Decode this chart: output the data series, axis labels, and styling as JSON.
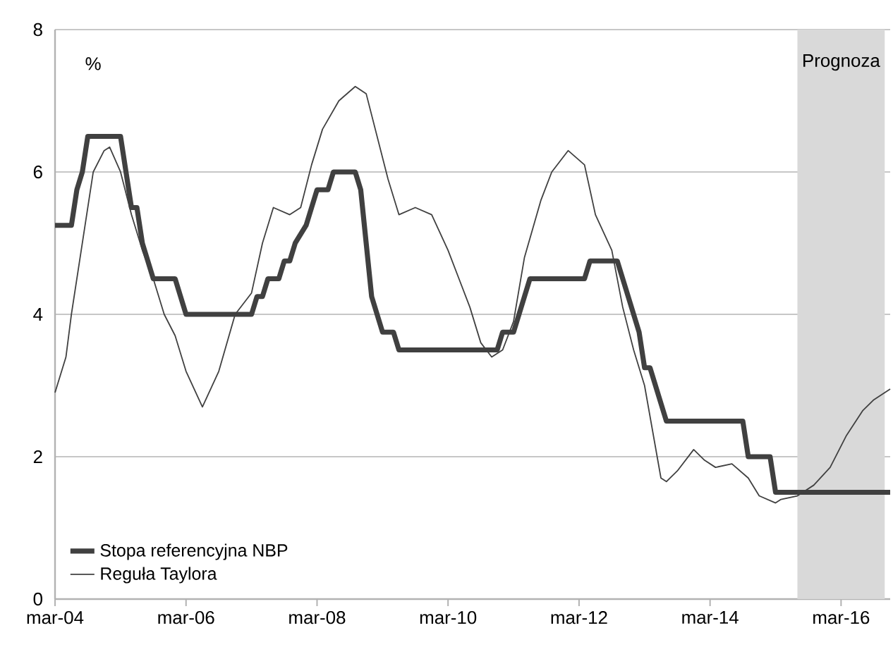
{
  "chart_data": {
    "type": "line",
    "annotations": [
      "%"
    ],
    "xlim": [
      "2004-03",
      "2016-12"
    ],
    "xticks": [
      {
        "value": "2004-03",
        "label": "mar-04"
      },
      {
        "value": "2006-03",
        "label": "mar-06"
      },
      {
        "value": "2008-03",
        "label": "mar-08"
      },
      {
        "value": "2010-03",
        "label": "mar-10"
      },
      {
        "value": "2012-03",
        "label": "mar-12"
      },
      {
        "value": "2014-03",
        "label": "mar-14"
      },
      {
        "value": "2016-03",
        "label": "mar-16"
      }
    ],
    "ylim": [
      0,
      8
    ],
    "yticks": [
      0,
      2,
      4,
      6,
      8
    ],
    "grid": "y",
    "legend": "bottom left",
    "bands": [
      {
        "axis": "x",
        "from": "2015-07",
        "to": "2016-11",
        "label": "Prognoza",
        "color": "#d9d9d9"
      }
    ],
    "series": [
      {
        "name": "Stopa referencyjna NBP",
        "color": "#404040",
        "x": [
          "2004-03",
          "2004-06",
          "2004-07",
          "2004-08",
          "2004-09",
          "2005-03",
          "2005-04",
          "2005-05",
          "2005-06",
          "2005-07",
          "2005-08",
          "2005-09",
          "2006-01",
          "2006-02",
          "2006-03",
          "2007-03",
          "2007-04",
          "2007-05",
          "2007-06",
          "2007-08",
          "2007-09",
          "2007-10",
          "2007-11",
          "2008-01",
          "2008-02",
          "2008-03",
          "2008-05",
          "2008-06",
          "2008-10",
          "2008-11",
          "2008-12",
          "2009-01",
          "2009-02",
          "2009-03",
          "2009-05",
          "2009-06",
          "2010-12",
          "2011-01",
          "2011-03",
          "2011-04",
          "2011-05",
          "2011-06",
          "2012-04",
          "2012-05",
          "2012-10",
          "2012-11",
          "2012-12",
          "2013-01",
          "2013-02",
          "2013-03",
          "2013-04",
          "2013-05",
          "2013-06",
          "2013-07",
          "2014-09",
          "2014-10",
          "2015-02",
          "2015-03",
          "2016-12"
        ],
        "values": [
          5.25,
          5.25,
          5.75,
          6.0,
          6.5,
          6.5,
          6.0,
          5.5,
          5.5,
          5.0,
          4.75,
          4.5,
          4.5,
          4.25,
          4.0,
          4.0,
          4.25,
          4.25,
          4.5,
          4.5,
          4.75,
          4.75,
          5.0,
          5.25,
          5.5,
          5.75,
          5.75,
          6.0,
          6.0,
          5.75,
          5.0,
          4.25,
          4.0,
          3.75,
          3.75,
          3.5,
          3.5,
          3.75,
          3.75,
          4.0,
          4.25,
          4.5,
          4.5,
          4.75,
          4.75,
          4.5,
          4.25,
          4.0,
          3.75,
          3.25,
          3.25,
          3.0,
          2.75,
          2.5,
          2.5,
          2.0,
          2.0,
          1.5,
          1.5
        ]
      },
      {
        "name": "Reguła Taylora",
        "color": "#404040",
        "x": [
          "2004-03",
          "2004-05",
          "2004-06",
          "2004-10",
          "2004-12",
          "2005-01",
          "2005-03",
          "2005-05",
          "2005-07",
          "2005-09",
          "2005-11",
          "2006-01",
          "2006-03",
          "2006-06",
          "2006-09",
          "2006-12",
          "2007-03",
          "2007-05",
          "2007-07",
          "2007-10",
          "2007-12",
          "2008-02",
          "2008-04",
          "2008-07",
          "2008-10",
          "2008-12",
          "2009-02",
          "2009-04",
          "2009-06",
          "2009-09",
          "2009-12",
          "2010-03",
          "2010-05",
          "2010-07",
          "2010-09",
          "2010-11",
          "2011-01",
          "2011-03",
          "2011-05",
          "2011-08",
          "2011-10",
          "2012-01",
          "2012-04",
          "2012-06",
          "2012-09",
          "2012-11",
          "2013-01",
          "2013-03",
          "2013-06",
          "2013-07",
          "2013-09",
          "2013-12",
          "2014-02",
          "2014-04",
          "2014-07",
          "2014-10",
          "2014-12",
          "2015-03",
          "2015-04",
          "2015-07",
          "2015-10",
          "2016-01",
          "2016-04",
          "2016-07",
          "2016-09",
          "2016-12"
        ],
        "values": [
          2.9,
          3.4,
          4.0,
          6.0,
          6.3,
          6.35,
          6.0,
          5.4,
          4.9,
          4.5,
          4.0,
          3.7,
          3.2,
          2.7,
          3.2,
          4.0,
          4.3,
          5.0,
          5.5,
          5.4,
          5.5,
          6.1,
          6.6,
          7.0,
          7.2,
          7.1,
          6.5,
          5.9,
          5.4,
          5.5,
          5.4,
          4.9,
          4.5,
          4.1,
          3.6,
          3.4,
          3.5,
          3.9,
          4.8,
          5.6,
          6.0,
          6.3,
          6.1,
          5.4,
          4.9,
          4.1,
          3.5,
          3.0,
          1.7,
          1.65,
          1.8,
          2.1,
          1.95,
          1.85,
          1.9,
          1.7,
          1.45,
          1.35,
          1.4,
          1.45,
          1.6,
          1.85,
          2.3,
          2.65,
          2.8,
          2.95
        ]
      }
    ]
  }
}
